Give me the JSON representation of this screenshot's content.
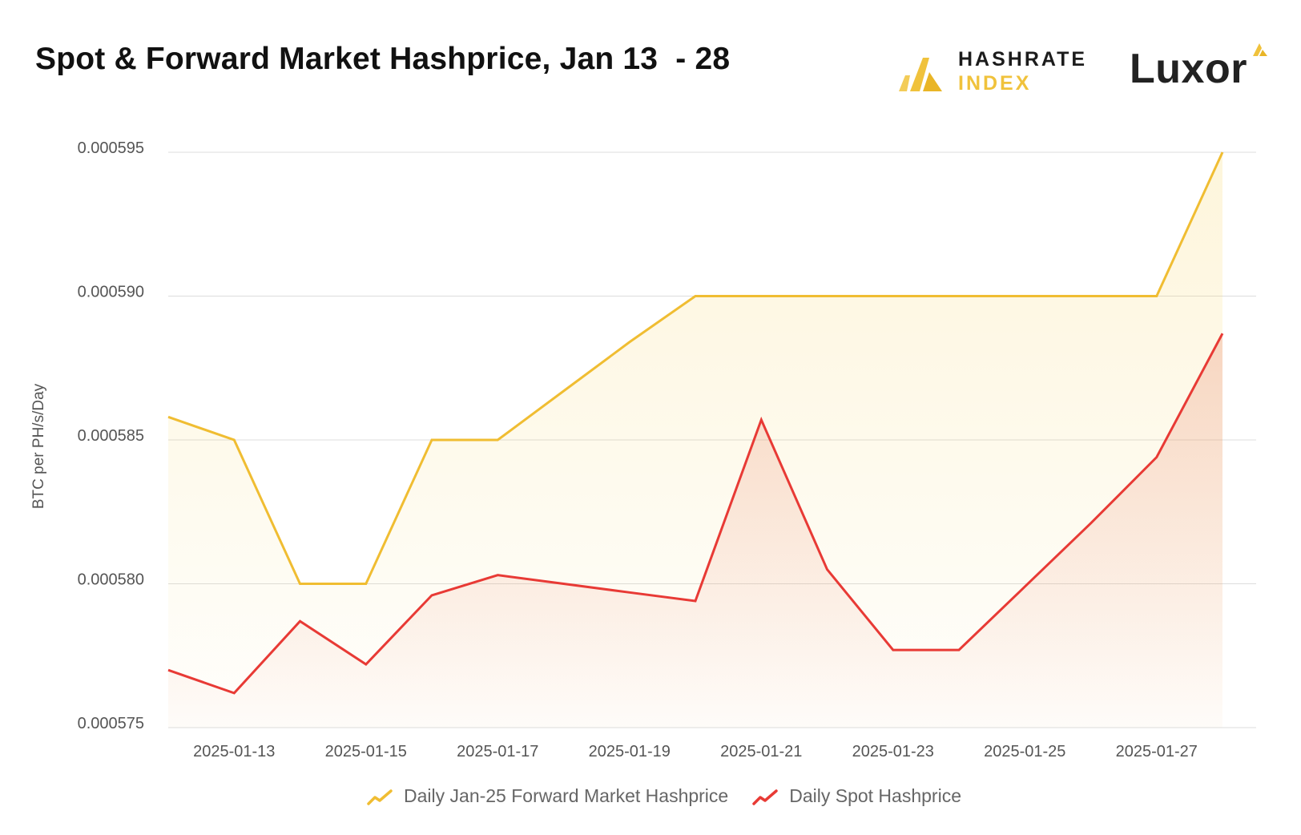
{
  "header": {
    "title": "Spot & Forward Market Hashprice, Jan 13  - 28"
  },
  "logos": {
    "hashrate_line1": "HASHRATE",
    "hashrate_line2": "INDEX",
    "luxor": "Luxor"
  },
  "colors": {
    "forward": "#f0bd32",
    "spot": "#e83a35",
    "grid": "#dddddd",
    "brand_gold": "#f0c23c"
  },
  "chart_data": {
    "type": "area",
    "ylabel": "BTC per PH/s/Day",
    "xlabel": "",
    "ylim": [
      0.000575,
      0.000595
    ],
    "yticks": [
      "0.000575",
      "0.000580",
      "0.000585",
      "0.000590",
      "0.000595"
    ],
    "xticks": [
      "2025-01-13",
      "2025-01-15",
      "2025-01-17",
      "2025-01-19",
      "2025-01-21",
      "2025-01-23",
      "2025-01-25",
      "2025-01-27"
    ],
    "grid": true,
    "legend_position": "bottom",
    "x": [
      "2025-01-12",
      "2025-01-13",
      "2025-01-14",
      "2025-01-15",
      "2025-01-16",
      "2025-01-17",
      "2025-01-18",
      "2025-01-19",
      "2025-01-20",
      "2025-01-21",
      "2025-01-22",
      "2025-01-23",
      "2025-01-24",
      "2025-01-25",
      "2025-01-26",
      "2025-01-27",
      "2025-01-28"
    ],
    "series": [
      {
        "name": "Daily Jan-25 Forward Market Hashprice",
        "color": "#f0bd32",
        "values": [
          0.0005858,
          0.000585,
          0.00058,
          0.00058,
          0.000585,
          0.000585,
          0.0005867,
          0.0005884,
          0.00059,
          0.00059,
          0.00059,
          0.00059,
          0.00059,
          0.00059,
          0.00059,
          0.00059,
          0.000595
        ]
      },
      {
        "name": "Daily Spot Hashprice",
        "color": "#e83a35",
        "values": [
          0.000577,
          0.0005762,
          0.0005787,
          0.0005772,
          0.0005796,
          0.0005803,
          0.00058,
          0.0005797,
          0.0005794,
          0.0005857,
          0.0005805,
          0.0005777,
          0.0005777,
          0.0005799,
          0.0005821,
          0.0005844,
          0.0005887
        ]
      }
    ]
  }
}
